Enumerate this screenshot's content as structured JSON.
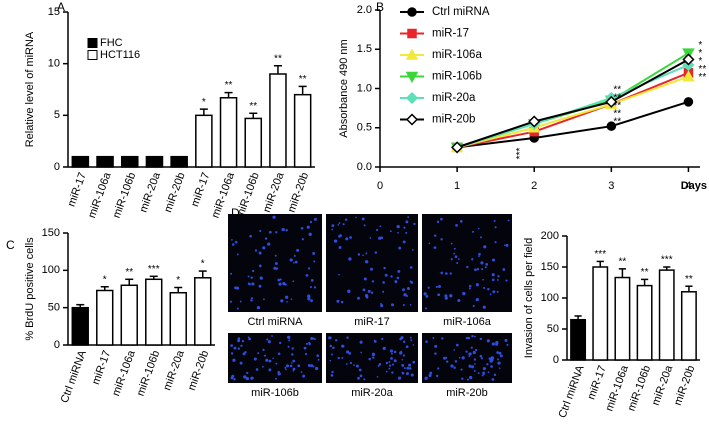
{
  "chart_data": [
    {
      "panel": "A",
      "type": "bar",
      "ylabel": "Relative level of miRNA",
      "categories": [
        "miR-17",
        "miR-106a",
        "miR-106b",
        "miR-20a",
        "miR-20b",
        "miR-17",
        "miR-106a",
        "miR-106b",
        "miR-20a",
        "miR-20b"
      ],
      "series": [
        {
          "name": "FHC",
          "color": "#000000",
          "values": [
            1,
            1,
            1,
            1,
            1,
            null,
            null,
            null,
            null,
            null
          ]
        },
        {
          "name": "HCT116",
          "color": "#ffffff",
          "values": [
            null,
            null,
            null,
            null,
            null,
            5,
            6.7,
            4.7,
            9,
            7
          ],
          "errors": [
            null,
            null,
            null,
            null,
            null,
            0.6,
            0.5,
            0.5,
            0.8,
            0.8
          ],
          "significance": [
            null,
            null,
            null,
            null,
            null,
            "*",
            "**",
            "**",
            "**",
            "**"
          ]
        }
      ],
      "ylim": [
        0,
        15
      ],
      "yticks": [
        0,
        5,
        10,
        15
      ]
    },
    {
      "panel": "B",
      "type": "line",
      "ylabel": "Absorbance 490 nm",
      "xlabel": "Days",
      "x": [
        1,
        2,
        3,
        4
      ],
      "xlim": [
        0,
        4.15
      ],
      "xticks": [
        0,
        1,
        2,
        3,
        4
      ],
      "ylim": [
        0,
        2
      ],
      "yticks": [
        {
          "value": 0,
          "label": "0.0"
        },
        0.5,
        {
          "value": 1,
          "label": "1.0"
        },
        1.5,
        {
          "value": 2,
          "label": "2.0"
        }
      ],
      "series": [
        {
          "name": "Ctrl miRNA",
          "color": "#000000",
          "marker": "circle",
          "values": [
            0.25,
            0.37,
            0.52,
            0.83
          ]
        },
        {
          "name": "miR-17",
          "color": "#e8262a",
          "marker": "square",
          "values": [
            0.25,
            0.45,
            0.8,
            1.2
          ],
          "significance": [
            null,
            null,
            "**",
            "*"
          ]
        },
        {
          "name": "miR-106a",
          "color": "#f0e83a",
          "marker": "triangle-up",
          "values": [
            0.25,
            0.5,
            0.8,
            1.15
          ],
          "significance": [
            null,
            null,
            "**",
            "*"
          ]
        },
        {
          "name": "miR-106b",
          "color": "#3ad63a",
          "marker": "triangle-down",
          "values": [
            0.25,
            0.55,
            0.85,
            1.45
          ],
          "significance": [
            null,
            "***",
            "**",
            "*"
          ]
        },
        {
          "name": "miR-20a",
          "color": "#5ce0b8",
          "marker": "diamond",
          "values": [
            0.25,
            0.55,
            0.88,
            1.3
          ],
          "significance": [
            null,
            null,
            "**",
            "**"
          ]
        },
        {
          "name": "miR-20b",
          "color": "#000000",
          "marker": "open-diamond",
          "values": [
            0.25,
            0.58,
            0.83,
            1.37
          ],
          "significance": [
            null,
            null,
            "**",
            "**"
          ]
        }
      ]
    },
    {
      "panel": "C",
      "type": "bar",
      "ylabel": "% BrdU positive cells",
      "categories": [
        "Ctrl miRNA",
        "miR-17",
        "miR-106a",
        "miR-106b",
        "miR-20a",
        "miR-20b"
      ],
      "values": [
        50,
        73,
        80,
        88,
        70,
        90
      ],
      "errors": [
        4,
        5,
        8,
        4,
        7,
        9
      ],
      "colors": [
        "#000000",
        "#ffffff",
        "#ffffff",
        "#ffffff",
        "#ffffff",
        "#ffffff"
      ],
      "significance": [
        null,
        "*",
        "**",
        "***",
        "*",
        "*"
      ],
      "ylim": [
        0,
        150
      ],
      "yticks": [
        0,
        50,
        100,
        150
      ]
    },
    {
      "panel": "D",
      "type": "image-grid",
      "labels": [
        "Ctrl miRNA",
        "miR-17",
        "miR-106a",
        "miR-106b",
        "miR-20a",
        "miR-20b"
      ]
    },
    {
      "type": "bar",
      "ylabel": "Invasion of cells per field",
      "categories": [
        "Ctrl miRNA",
        "miR-17",
        "miR-106a",
        "miR-106b",
        "miR-20a",
        "miR-20b"
      ],
      "values": [
        65,
        150,
        133,
        120,
        145,
        110
      ],
      "errors": [
        6,
        9,
        14,
        10,
        5,
        9
      ],
      "colors": [
        "#000000",
        "#ffffff",
        "#ffffff",
        "#ffffff",
        "#ffffff",
        "#ffffff"
      ],
      "significance": [
        null,
        "***",
        "**",
        "**",
        "***",
        "**"
      ],
      "ylim": [
        0,
        200
      ],
      "yticks": [
        0,
        50,
        100,
        150,
        200
      ]
    }
  ]
}
